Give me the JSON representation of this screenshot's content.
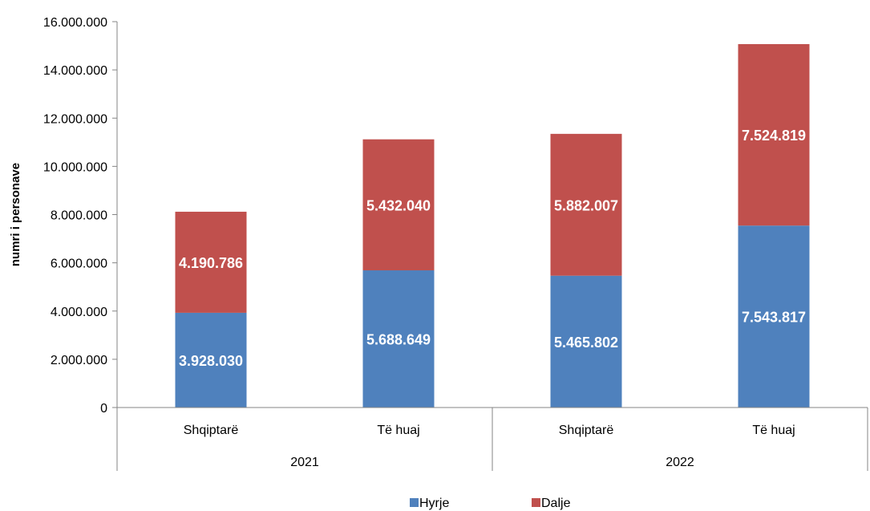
{
  "chart_data": {
    "type": "bar",
    "stacked": true,
    "title": "",
    "xlabel": "",
    "ylabel": "numri i personave",
    "ylim": [
      0,
      16000000
    ],
    "yticks": [
      "0",
      "2.000.000",
      "4.000.000",
      "6.000.000",
      "8.000.000",
      "10.000.000",
      "12.000.000",
      "14.000.000",
      "16.000.000"
    ],
    "categories": [
      "Shqiptarë",
      "Të huaj",
      "Shqiptarë",
      "Të huaj"
    ],
    "groups": [
      {
        "label": "2021",
        "span": 2
      },
      {
        "label": "2022",
        "span": 2
      }
    ],
    "series": [
      {
        "name": "Hyrje",
        "color": "#4f81bd",
        "values": [
          3928030,
          5688649,
          5465802,
          7543817
        ],
        "labels": [
          "3.928.030",
          "5.688.649",
          "5.465.802",
          "7.543.817"
        ]
      },
      {
        "name": "Dalje",
        "color": "#c0504d",
        "values": [
          4190786,
          5432040,
          5882007,
          7524819
        ],
        "labels": [
          "4.190.786",
          "5.432.040",
          "5.882.007",
          "7.524.819"
        ]
      }
    ],
    "legend_position": "bottom",
    "grid": false
  }
}
